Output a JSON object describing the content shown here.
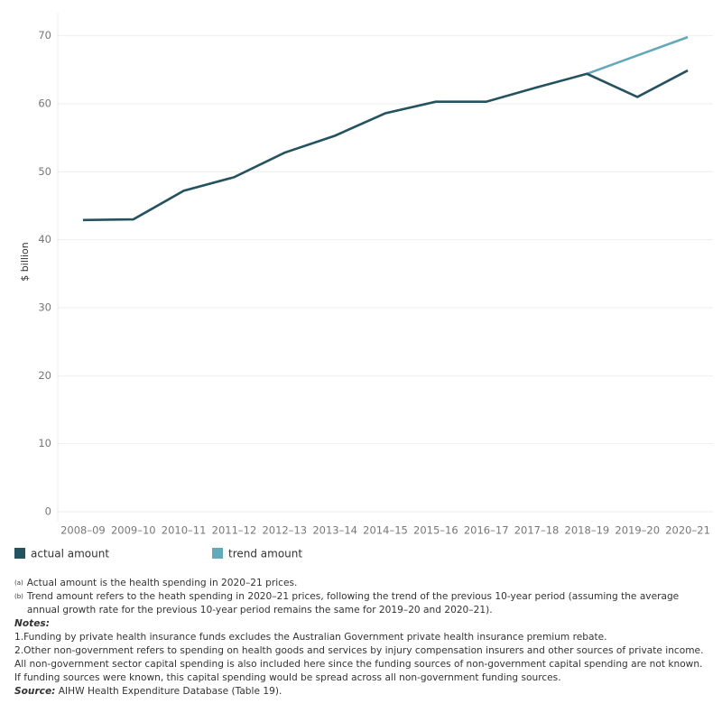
{
  "chart_data": {
    "type": "line",
    "y_label": "$ billion",
    "categories": [
      "2008–09",
      "2009–10",
      "2010–11",
      "2011–12",
      "2012–13",
      "2013–14",
      "2014–15",
      "2015–16",
      "2016–17",
      "2017–18",
      "2018–19",
      "2019–20",
      "2020–21"
    ],
    "series": [
      {
        "name": "actual amount",
        "color": "#24525e",
        "values": [
          42.9,
          43.0,
          47.2,
          49.2,
          52.8,
          55.3,
          58.6,
          60.3,
          60.3,
          62.4,
          64.4,
          61.0,
          64.9
        ]
      },
      {
        "name": "trend amount",
        "color": "#63a9b9",
        "values": [
          null,
          null,
          null,
          null,
          null,
          null,
          null,
          null,
          null,
          null,
          64.4,
          67.1,
          69.8
        ]
      }
    ],
    "ylim": [
      0,
      73.4
    ],
    "yticks": [
      0,
      10,
      20,
      30,
      40,
      50,
      60,
      70
    ],
    "grid": true
  },
  "footnotes": [
    {
      "marker": "(a)",
      "text": "Actual amount is the health spending in 2020–21 prices."
    },
    {
      "marker": "(b)",
      "text": "Trend amount refers to the heath spending in 2020–21 prices, following the trend of the previous 10-year period (assuming the average annual growth rate for the previous 10-year period remains the same for  2019–20 and 2020–21)."
    }
  ],
  "notes_heading": "Notes:",
  "notes": [
    "1.Funding by private health insurance funds excludes the Australian Government private health insurance premium rebate.",
    "2.Other non-government refers to spending on health goods and services by injury compensation insurers and other sources of private income. All non-government sector capital spending is also included here since the funding sources of non-government capital spending are not known. If funding sources were known, this capital spending would be spread across all non-government funding sources."
  ],
  "source_label": "Source:",
  "source_text": " AIHW Health Expenditure Database (Table 19)."
}
